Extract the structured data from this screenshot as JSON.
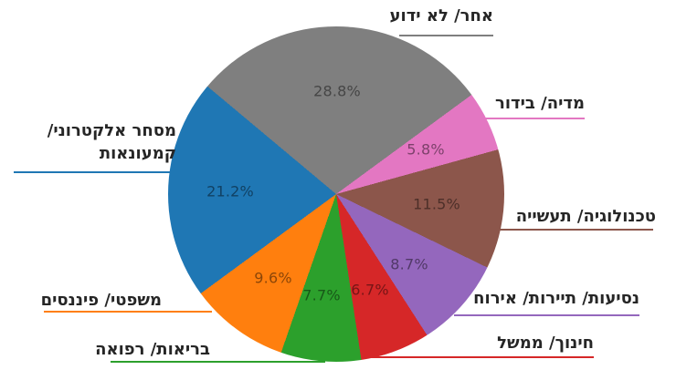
{
  "chart_data": {
    "type": "pie",
    "title": "",
    "labels_language": "he",
    "background": "#ffffff",
    "legend_position": "none",
    "start_angle_deg": 140,
    "direction": "clockwise",
    "label_style": "outside-with-leader-lines",
    "value_label_style": "inside-percent",
    "slices": [
      {
        "id": "other_unknown",
        "label": "אחר/ לא ידוע",
        "value_pct": 28.8,
        "color": "#7f7f7f"
      },
      {
        "id": "media_entertainment",
        "label": "מדיה/ בידור",
        "value_pct": 5.8,
        "color": "#e377c2"
      },
      {
        "id": "technology_industry",
        "label": "טכנולוגיה/ תעשייה",
        "value_pct": 11.5,
        "color": "#8c564b"
      },
      {
        "id": "travel_tourism_hospitality",
        "label": "נסיעות/ תיירות/ אירוח",
        "value_pct": 8.7,
        "color": "#9467bd"
      },
      {
        "id": "education_government",
        "label": "חינוך/ ממשל",
        "value_pct": 6.7,
        "color": "#d62728"
      },
      {
        "id": "health_medicine",
        "label": "בריאות/ רפואה",
        "value_pct": 7.7,
        "color": "#2ca02c"
      },
      {
        "id": "legal_finance",
        "label": "משפטי/ פיננסים",
        "value_pct": 9.6,
        "color": "#ff7f0e"
      },
      {
        "id": "ecommerce_retail",
        "label": "מסחר אלקטרוני/ קמעונאות",
        "value_pct": 21.2,
        "color": "#1f77b4"
      }
    ]
  }
}
